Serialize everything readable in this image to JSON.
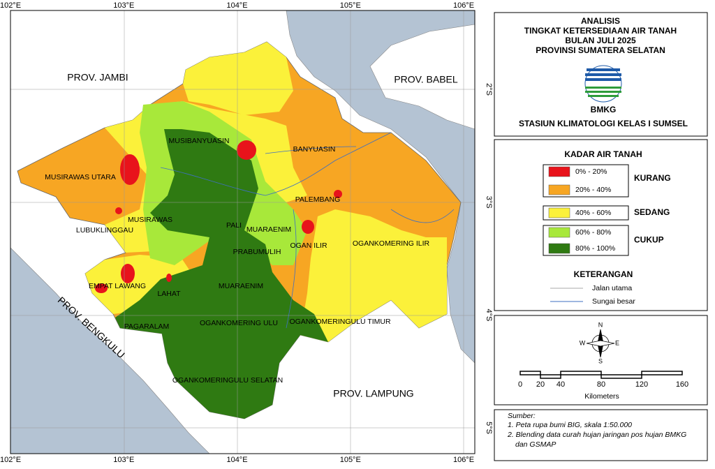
{
  "graticule": {
    "lon": [
      {
        "value": 102,
        "label": "102°E"
      },
      {
        "value": 103,
        "label": "103°E"
      },
      {
        "value": 104,
        "label": "104°E"
      },
      {
        "value": 105,
        "label": "105°E"
      },
      {
        "value": 106,
        "label": "106°E"
      }
    ],
    "lat": [
      {
        "value": -2,
        "label": "2°S"
      },
      {
        "value": -3,
        "label": "3°S"
      },
      {
        "value": -4,
        "label": "4°S"
      },
      {
        "value": -5,
        "label": "5°S"
      }
    ]
  },
  "regions": {
    "neighbors": [
      "PROV. JAMBI",
      "PROV. BABEL",
      "PROV. BENGKULU",
      "PROV. LAMPUNG"
    ],
    "districts": [
      "MUSIBANYUASIN",
      "BANYUASIN",
      "MUSIRAWAS UTARA",
      "PALEMBANG",
      "MUSIRAWAS",
      "LUBUKLINGGAU",
      "PALI",
      "MUARAENIM",
      "PRABUMULIH",
      "OGAN ILIR",
      "OGANKOMERING ILIR",
      "EMPAT LAWANG",
      "LAHAT",
      "MUARAENIM",
      "PAGARALAM",
      "OGANKOMERING ULU",
      "OGANKOMERINGULU TIMUR",
      "OGANKOMERINGULU SELATAN"
    ]
  },
  "panel": {
    "title": [
      "ANALISIS",
      "TINGKAT KETERSEDIAAN AIR TANAH",
      "BULAN JULI 2025",
      "PROVINSI SUMATERA SELATAN"
    ],
    "agency": "BMKG",
    "station": "STASIUN KLIMATOLOGI KELAS I SUMSEL"
  },
  "legend": {
    "title": "KADAR AIR TANAH",
    "classes": [
      {
        "range": "0% - 20%",
        "color": "#e8131b"
      },
      {
        "range": "20% - 40%",
        "color": "#f7a623"
      },
      {
        "range": "40% - 60%",
        "color": "#fbf13a"
      },
      {
        "range": "60% - 80%",
        "color": "#a8e83a"
      },
      {
        "range": "80% - 100%",
        "color": "#2f7a12"
      }
    ],
    "categories": [
      "KURANG",
      "SEDANG",
      "CUKUP"
    ],
    "notes_title": "KETERANGAN",
    "notes": [
      "Jalan utama",
      "Sungai besar"
    ]
  },
  "compass": [
    "N",
    "S",
    "E",
    "W"
  ],
  "scale": {
    "ticks": [
      0,
      20,
      40,
      80,
      120,
      160
    ],
    "unit": "Kilometers"
  },
  "sources": {
    "title": "Sumber:",
    "lines": [
      "1. Peta rupa bumi BIG, skala 1:50.000",
      "2. Blending data curah hujan jaringan pos hujan BMKG",
      "dan GSMAP"
    ]
  }
}
